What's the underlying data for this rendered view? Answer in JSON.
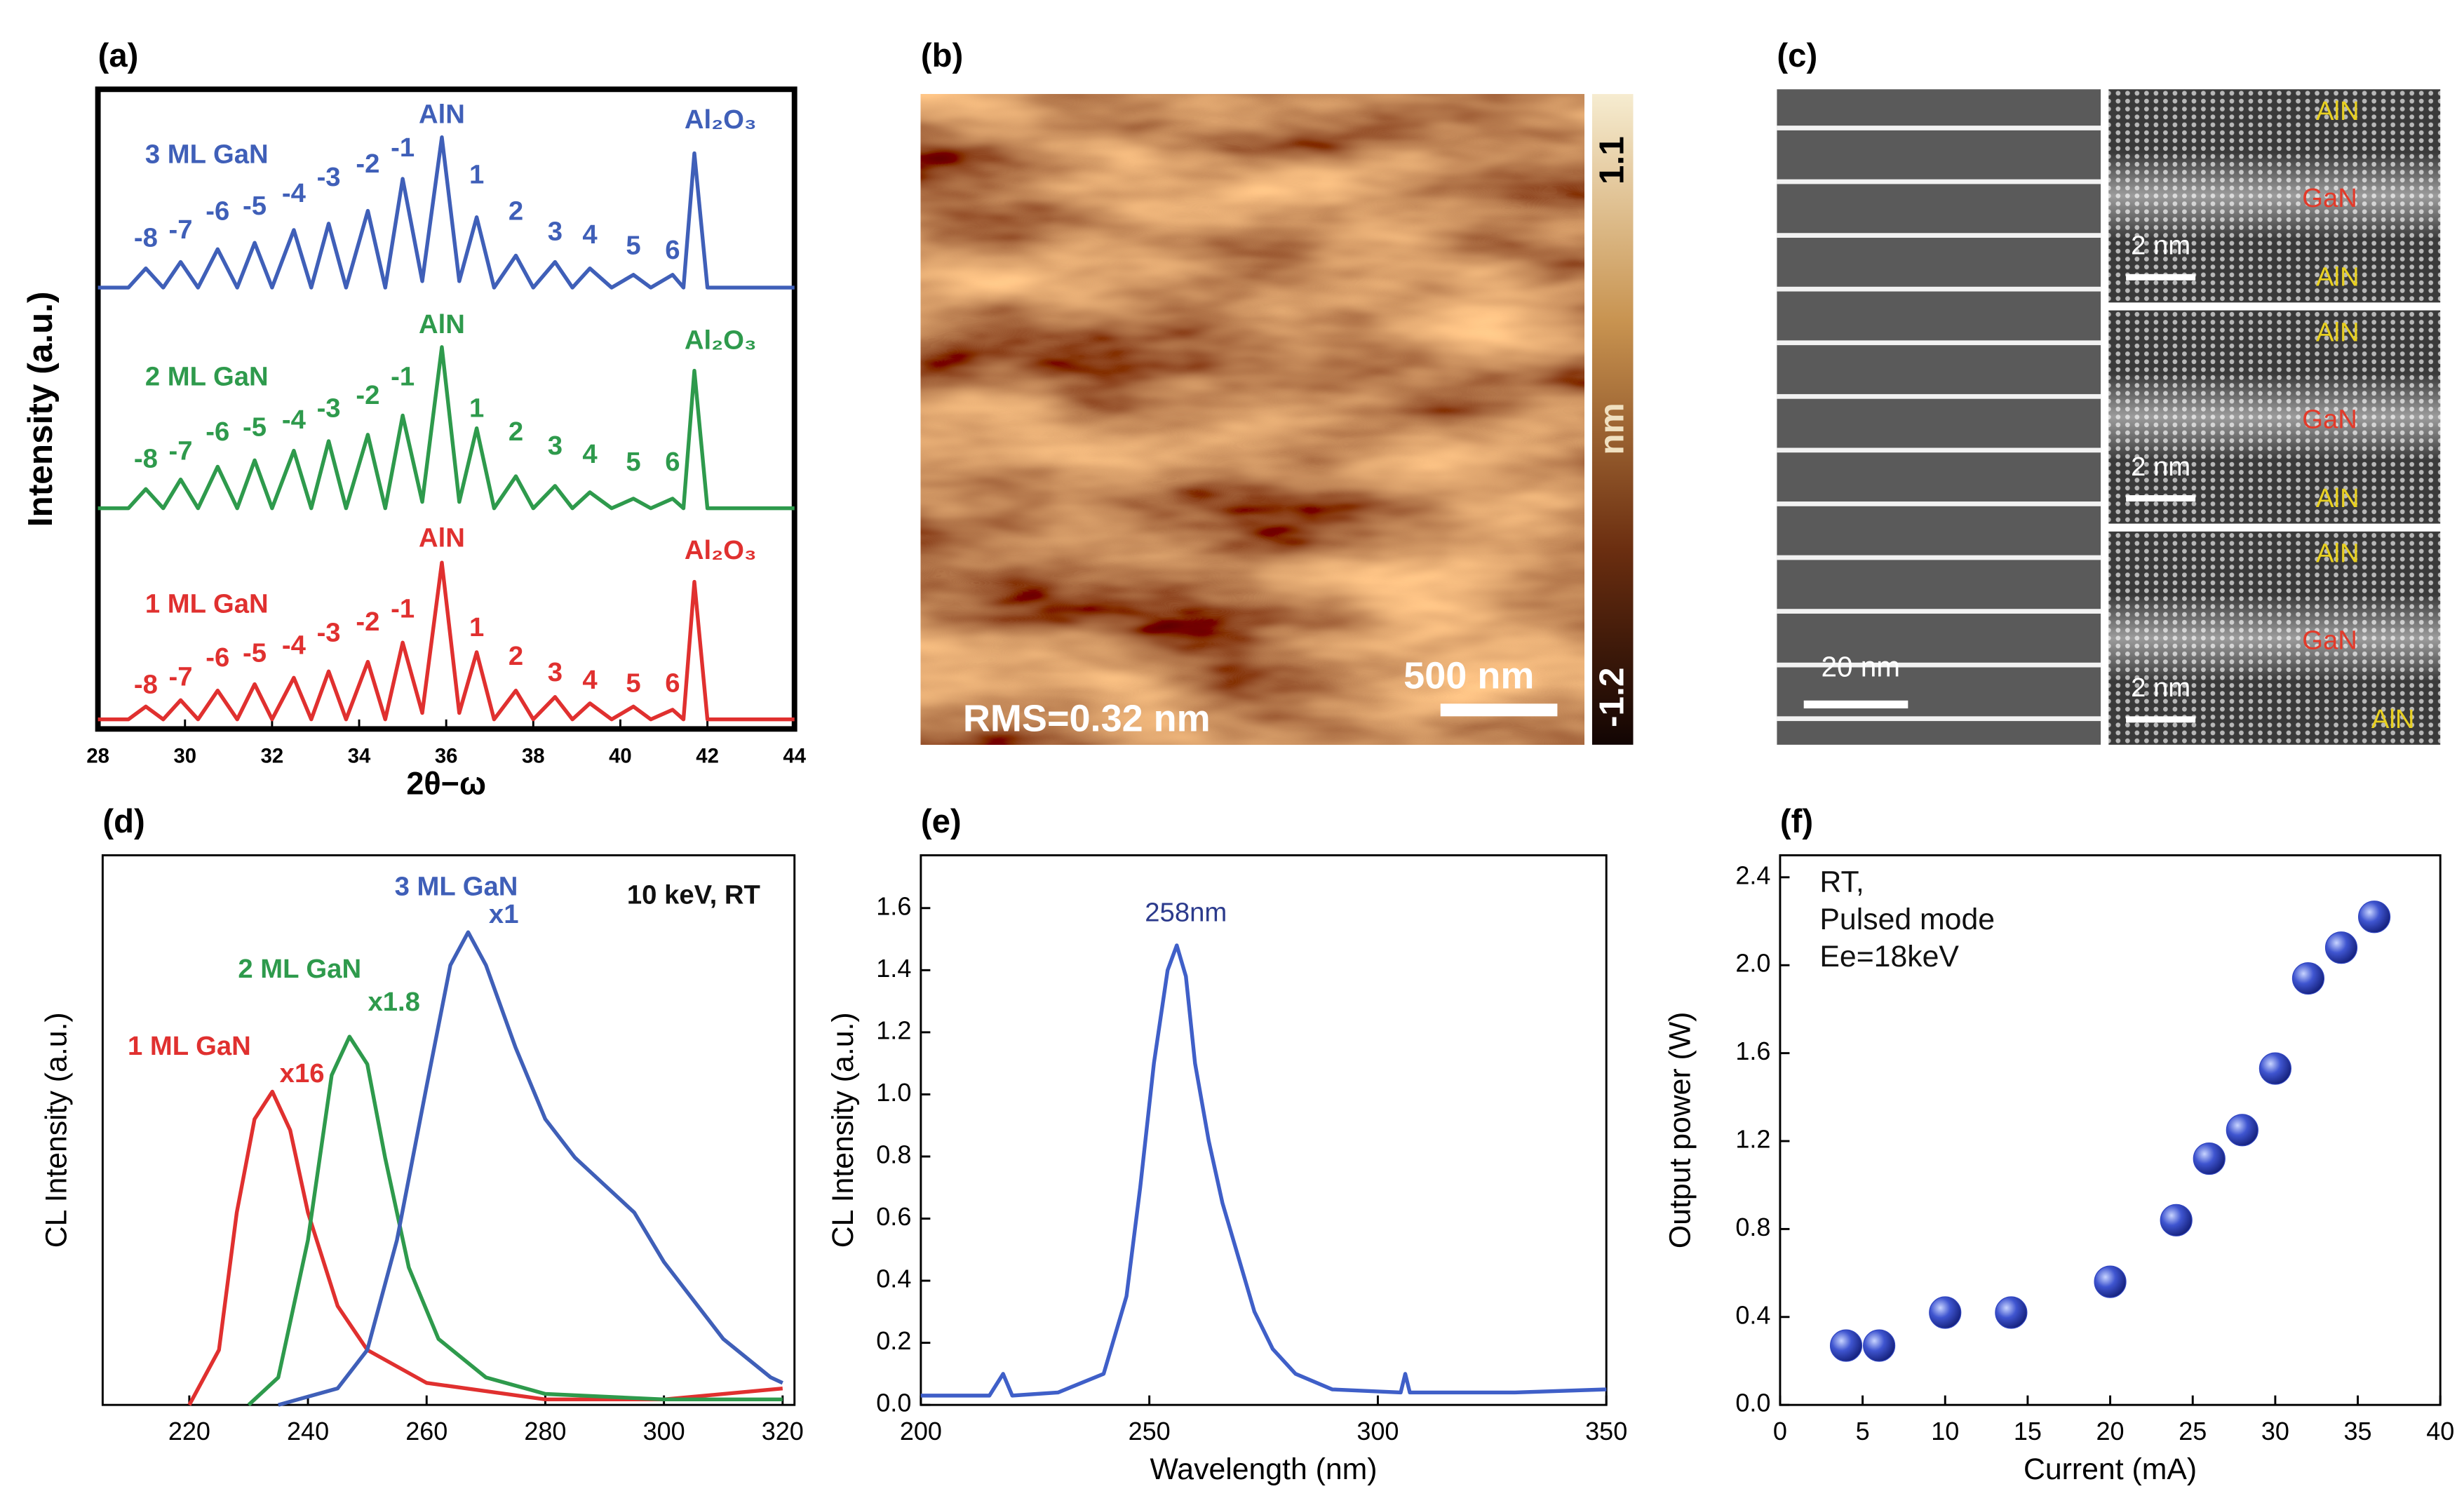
{
  "chart_data": [
    {
      "type": "line",
      "panel": "(a)",
      "xlabel": "2θ−ω",
      "ylabel": "Intensity (a.u.)",
      "xlim": [
        28,
        44
      ],
      "ylim": [
        0,
        10
      ],
      "xticks": [
        28,
        30,
        32,
        34,
        36,
        38,
        40,
        42,
        44
      ],
      "x": [
        28,
        28.7,
        29.1,
        29.5,
        29.9,
        30.3,
        30.75,
        31.2,
        31.6,
        32.0,
        32.5,
        32.9,
        33.3,
        33.7,
        34.2,
        34.6,
        35.0,
        35.45,
        35.9,
        36.3,
        36.7,
        37.1,
        37.6,
        38.0,
        38.5,
        38.9,
        39.3,
        39.8,
        40.3,
        40.7,
        41.2,
        41.45,
        41.7,
        42.0,
        44
      ],
      "series": [
        {
          "name": "3 ML GaN",
          "color": "#3f5fb8",
          "values": [
            6.9,
            6.9,
            7.2,
            6.9,
            7.3,
            6.9,
            7.5,
            6.9,
            7.6,
            6.9,
            7.8,
            6.9,
            7.9,
            6.9,
            8.1,
            6.9,
            8.6,
            7.0,
            9.25,
            7.0,
            8.0,
            6.9,
            7.4,
            6.9,
            7.3,
            6.9,
            7.2,
            6.9,
            7.1,
            6.9,
            7.1,
            6.9,
            9.0,
            6.9,
            6.9
          ],
          "annotations": [
            {
              "text": "3 ML GaN",
              "x": 30.5,
              "y": 8.96
            },
            {
              "text": "-8",
              "x": 29.1,
              "y": 7.65
            },
            {
              "text": "-7",
              "x": 29.9,
              "y": 7.78
            },
            {
              "text": "-6",
              "x": 30.75,
              "y": 8.07
            },
            {
              "text": "-5",
              "x": 31.6,
              "y": 8.15
            },
            {
              "text": "-4",
              "x": 32.5,
              "y": 8.35
            },
            {
              "text": "-3",
              "x": 33.3,
              "y": 8.6
            },
            {
              "text": "-2",
              "x": 34.2,
              "y": 8.81
            },
            {
              "text": "-1",
              "x": 35.0,
              "y": 9.06
            },
            {
              "text": "AlN",
              "x": 35.9,
              "y": 9.58
            },
            {
              "text": "1",
              "x": 36.7,
              "y": 8.64
            },
            {
              "text": "2",
              "x": 37.6,
              "y": 8.07
            },
            {
              "text": "3",
              "x": 38.5,
              "y": 7.75
            },
            {
              "text": "4",
              "x": 39.3,
              "y": 7.7
            },
            {
              "text": "5",
              "x": 40.3,
              "y": 7.53
            },
            {
              "text": "6",
              "x": 41.2,
              "y": 7.46
            },
            {
              "text": "Al₂O₃",
              "x": 42.3,
              "y": 9.5
            }
          ]
        },
        {
          "name": "2 ML GaN",
          "color": "#2e9a4c",
          "values": [
            3.45,
            3.45,
            3.75,
            3.45,
            3.9,
            3.45,
            4.1,
            3.45,
            4.2,
            3.45,
            4.35,
            3.45,
            4.5,
            3.45,
            4.6,
            3.45,
            4.9,
            3.55,
            5.97,
            3.55,
            4.7,
            3.45,
            3.95,
            3.45,
            3.8,
            3.45,
            3.7,
            3.45,
            3.6,
            3.45,
            3.6,
            3.45,
            5.6,
            3.45,
            3.45
          ],
          "annotations": [
            {
              "text": "2 ML GaN",
              "x": 30.5,
              "y": 5.48
            },
            {
              "text": "-8",
              "x": 29.1,
              "y": 4.2
            },
            {
              "text": "-7",
              "x": 29.9,
              "y": 4.32
            },
            {
              "text": "-6",
              "x": 30.75,
              "y": 4.62
            },
            {
              "text": "-5",
              "x": 31.6,
              "y": 4.69
            },
            {
              "text": "-4",
              "x": 32.5,
              "y": 4.81
            },
            {
              "text": "-3",
              "x": 33.3,
              "y": 4.99
            },
            {
              "text": "-2",
              "x": 34.2,
              "y": 5.19
            },
            {
              "text": "-1",
              "x": 35.0,
              "y": 5.48
            },
            {
              "text": "AlN",
              "x": 35.9,
              "y": 6.3
            },
            {
              "text": "1",
              "x": 36.7,
              "y": 4.99
            },
            {
              "text": "2",
              "x": 37.6,
              "y": 4.62
            },
            {
              "text": "3",
              "x": 38.5,
              "y": 4.4
            },
            {
              "text": "4",
              "x": 39.3,
              "y": 4.27
            },
            {
              "text": "5",
              "x": 40.3,
              "y": 4.15
            },
            {
              "text": "6",
              "x": 41.2,
              "y": 4.15
            },
            {
              "text": "Al₂O₃",
              "x": 42.3,
              "y": 6.05
            }
          ]
        },
        {
          "name": "1 ML GaN",
          "color": "#e0302f",
          "values": [
            0.15,
            0.15,
            0.35,
            0.15,
            0.45,
            0.15,
            0.6,
            0.15,
            0.7,
            0.15,
            0.8,
            0.15,
            0.9,
            0.15,
            1.05,
            0.15,
            1.35,
            0.25,
            2.6,
            0.25,
            1.2,
            0.15,
            0.6,
            0.15,
            0.5,
            0.15,
            0.4,
            0.15,
            0.35,
            0.15,
            0.3,
            0.15,
            2.3,
            0.15,
            0.15
          ],
          "annotations": [
            {
              "text": "1 ML GaN",
              "x": 30.5,
              "y": 1.93
            },
            {
              "text": "-8",
              "x": 29.1,
              "y": 0.67
            },
            {
              "text": "-7",
              "x": 29.9,
              "y": 0.79
            },
            {
              "text": "-6",
              "x": 30.75,
              "y": 1.09
            },
            {
              "text": "-5",
              "x": 31.6,
              "y": 1.16
            },
            {
              "text": "-4",
              "x": 32.5,
              "y": 1.28
            },
            {
              "text": "-3",
              "x": 33.3,
              "y": 1.48
            },
            {
              "text": "-2",
              "x": 34.2,
              "y": 1.65
            },
            {
              "text": "-1",
              "x": 35.0,
              "y": 1.85
            },
            {
              "text": "AlN",
              "x": 35.9,
              "y": 2.96
            },
            {
              "text": "1",
              "x": 36.7,
              "y": 1.56
            },
            {
              "text": "2",
              "x": 37.6,
              "y": 1.11
            },
            {
              "text": "3",
              "x": 38.5,
              "y": 0.86
            },
            {
              "text": "4",
              "x": 39.3,
              "y": 0.74
            },
            {
              "text": "5",
              "x": 40.3,
              "y": 0.69
            },
            {
              "text": "6",
              "x": 41.2,
              "y": 0.69
            },
            {
              "text": "Al₂O₃",
              "x": 42.3,
              "y": 2.77
            }
          ]
        }
      ]
    },
    {
      "type": "line",
      "panel": "(d)",
      "ylabel": "CL Intensity (a.u.)",
      "xlim": [
        205.4,
        322
      ],
      "ylim": [
        0,
        1
      ],
      "xticks": [
        220,
        240,
        260,
        280,
        300,
        320
      ],
      "annotations": [
        {
          "text": "10 keV, RT",
          "x": 305,
          "y": 0.925,
          "color": "#111111"
        }
      ],
      "series": [
        {
          "name": "1 ML GaN",
          "color": "#e0302f",
          "x": [
            220,
            225,
            228,
            231,
            234,
            237,
            240,
            245,
            250,
            260,
            280,
            300,
            320
          ],
          "values": [
            0,
            0.1,
            0.35,
            0.52,
            0.57,
            0.5,
            0.35,
            0.18,
            0.1,
            0.04,
            0.01,
            0.01,
            0.03
          ],
          "annotations": [
            {
              "text": "1 ML GaN",
              "x": 220,
              "y": 0.65
            },
            {
              "text": "x16",
              "x": 239,
              "y": 0.6
            }
          ]
        },
        {
          "name": "2 ML GaN",
          "color": "#2e9a4c",
          "x": [
            230,
            235,
            240,
            244,
            247,
            250,
            253,
            257,
            262,
            270,
            280,
            300,
            320
          ],
          "values": [
            0,
            0.05,
            0.3,
            0.6,
            0.67,
            0.62,
            0.45,
            0.25,
            0.12,
            0.05,
            0.02,
            0.01,
            0.01
          ],
          "annotations": [
            {
              "text": "2 ML GaN",
              "x": 238.6,
              "y": 0.79
            },
            {
              "text": "x1.8",
              "x": 254.5,
              "y": 0.73
            }
          ]
        },
        {
          "name": "3 ML GaN",
          "color": "#3f5fb8",
          "x": [
            235,
            245,
            250,
            255,
            260,
            264,
            267,
            270,
            275,
            280,
            285,
            290,
            295,
            300,
            310,
            318,
            320
          ],
          "values": [
            0,
            0.03,
            0.1,
            0.3,
            0.58,
            0.8,
            0.86,
            0.8,
            0.65,
            0.52,
            0.45,
            0.4,
            0.35,
            0.26,
            0.12,
            0.05,
            0.04
          ],
          "annotations": [
            {
              "text": "3 ML GaN",
              "x": 265,
              "y": 0.94
            },
            {
              "text": "x1",
              "x": 273,
              "y": 0.89
            }
          ]
        }
      ]
    },
    {
      "type": "line",
      "panel": "(e)",
      "xlabel": "Wavelength (nm)",
      "ylabel": "CL Intensity (a.u.)",
      "xlim": [
        200,
        350
      ],
      "ylim": [
        0,
        1.77
      ],
      "xticks": [
        200,
        250,
        300,
        350
      ],
      "yticks": [
        {
          "value": 0,
          "label": "0.0"
        },
        {
          "value": 0.2,
          "label": "0.2"
        },
        {
          "value": 0.4,
          "label": "0.4"
        },
        {
          "value": 0.6,
          "label": "0.6"
        },
        {
          "value": 0.8,
          "label": "0.8"
        },
        {
          "value": 1.0,
          "label": "1.0"
        },
        {
          "value": 1.2,
          "label": "1.2"
        },
        {
          "value": 1.4,
          "label": "1.4"
        },
        {
          "value": 1.6,
          "label": "1.6"
        }
      ],
      "annotations": [
        {
          "text": "258nm",
          "x": 258,
          "y": 1.58,
          "color": "#2b3a8c"
        }
      ],
      "series": [
        {
          "color": "#3f5fc8",
          "x": [
            200,
            215,
            218,
            220,
            230,
            240,
            245,
            248,
            251,
            254,
            256,
            258,
            260,
            263,
            266,
            270,
            273,
            277,
            282,
            290,
            305,
            306,
            307,
            330,
            350
          ],
          "values": [
            0.03,
            0.03,
            0.1,
            0.03,
            0.04,
            0.1,
            0.35,
            0.7,
            1.1,
            1.4,
            1.48,
            1.38,
            1.1,
            0.85,
            0.65,
            0.45,
            0.3,
            0.18,
            0.1,
            0.05,
            0.04,
            0.1,
            0.04,
            0.04,
            0.05
          ]
        }
      ]
    },
    {
      "type": "scatter",
      "panel": "(f)",
      "xlabel": "Current (mA)",
      "ylabel": "Output power (W)",
      "xlim": [
        0,
        40
      ],
      "ylim": [
        0,
        2.5
      ],
      "xticks": [
        0,
        5,
        10,
        15,
        20,
        25,
        30,
        35,
        40
      ],
      "yticks": [
        {
          "value": 0,
          "label": "0.0"
        },
        {
          "value": 0.4,
          "label": "0.4"
        },
        {
          "value": 0.8,
          "label": "0.8"
        },
        {
          "value": 1.2,
          "label": "1.2"
        },
        {
          "value": 1.6,
          "label": "1.6"
        },
        {
          "value": 2.0,
          "label": "2.0"
        },
        {
          "value": 2.4,
          "label": "2.4"
        }
      ],
      "annotations": [
        {
          "text": "RT,",
          "x": 2.4,
          "y": 2.37,
          "color": "#111111"
        },
        {
          "text": "Pulsed mode",
          "x": 2.4,
          "y": 2.2,
          "color": "#111111"
        },
        {
          "text": "Ee=18keV",
          "x": 2.4,
          "y": 2.03,
          "color": "#111111"
        }
      ],
      "series": [
        {
          "color": "#2f44c0",
          "x": [
            4,
            6,
            10,
            14,
            20,
            24,
            26,
            28,
            30,
            32,
            34,
            36
          ],
          "values": [
            0.27,
            0.27,
            0.42,
            0.42,
            0.56,
            0.84,
            1.12,
            1.25,
            1.53,
            1.94,
            2.08,
            2.22
          ]
        }
      ]
    }
  ],
  "images": {
    "b": {
      "panel": "(b)",
      "colorbar": {
        "max": "1.1",
        "min": "-1.2",
        "unit": "nm"
      },
      "scale_bar": "500 nm",
      "rms": "RMS=0.32 nm"
    },
    "c": {
      "panel": "(c)",
      "scale_bar": "20 nm",
      "insets": [
        {
          "layers": [
            "AlN",
            "GaN",
            "AlN"
          ],
          "scale_bar": "2 nm"
        },
        {
          "layers": [
            "AlN",
            "GaN",
            "AlN"
          ],
          "scale_bar": "2 nm"
        },
        {
          "layers": [
            "AlN",
            "GaN",
            "AlN"
          ],
          "scale_bar": "2 nm"
        }
      ]
    }
  }
}
